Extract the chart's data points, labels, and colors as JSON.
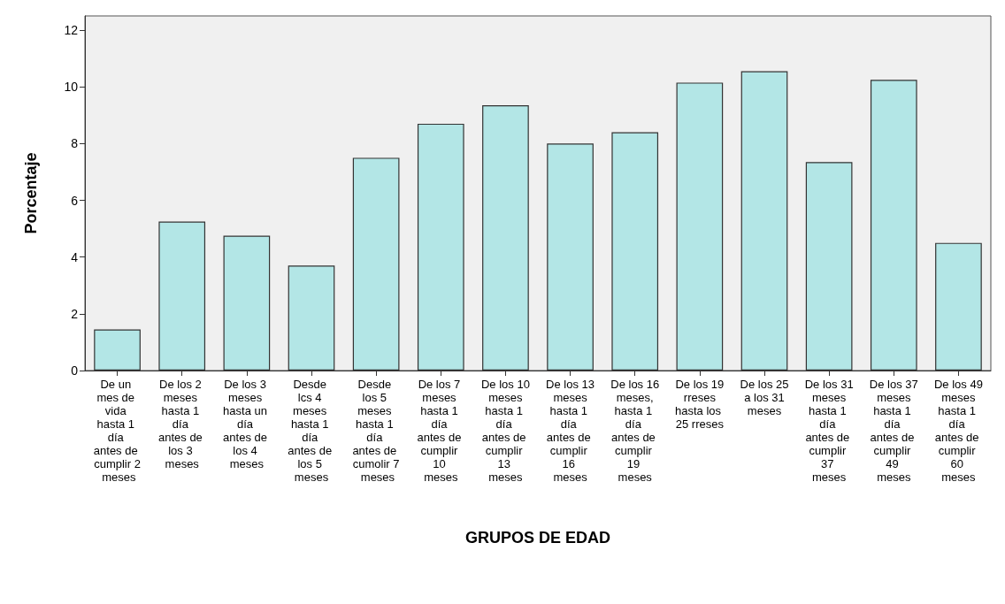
{
  "chart_data": {
    "type": "bar",
    "xlabel": "GRUPOS DE EDAD",
    "ylabel": "Porcentaje",
    "categories": [
      "De un mes de vida hasta 1 día antes de cumplir 2 meses",
      "De los 2 meses hasta 1 día antes de los 3 meses",
      "De los 3 meses hasta un día antes de los 4 meses",
      "Desde lcs 4 meses hasta 1 día antes de los 5 meses",
      "Desde los 5 meses hasta 1 día antes de cumolir 7 meses",
      "De los 7 meses hasta 1 día antes de cumplir 10 meses",
      "De los 10 meses hasta 1 día antes de cumplir 13 meses",
      "De los 13 meses hasta 1 día antes de cumplir 16 meses",
      "De los 16 meses, hasta 1 día antes de cumplir 19 meses",
      "De los 19 rreses hasta los 25 rreses",
      "De los 25 a los 31 meses",
      "De los 31 meses hasta 1 día antes de cumplir 37 meses",
      "De los 37 meses hasta 1 día antes de cumplir 49 meses",
      "De los 49 meses hasta 1 día antes de cumplir 60 meses"
    ],
    "values": [
      1.45,
      5.25,
      4.75,
      3.7,
      7.5,
      8.7,
      9.35,
      8.0,
      8.4,
      10.15,
      10.55,
      7.35,
      10.25,
      4.5
    ],
    "color": "#b3e6e6",
    "ylim": [
      0,
      12.5
    ],
    "yticks": [
      0,
      2,
      4,
      6,
      8,
      10,
      12
    ],
    "grid": false
  }
}
